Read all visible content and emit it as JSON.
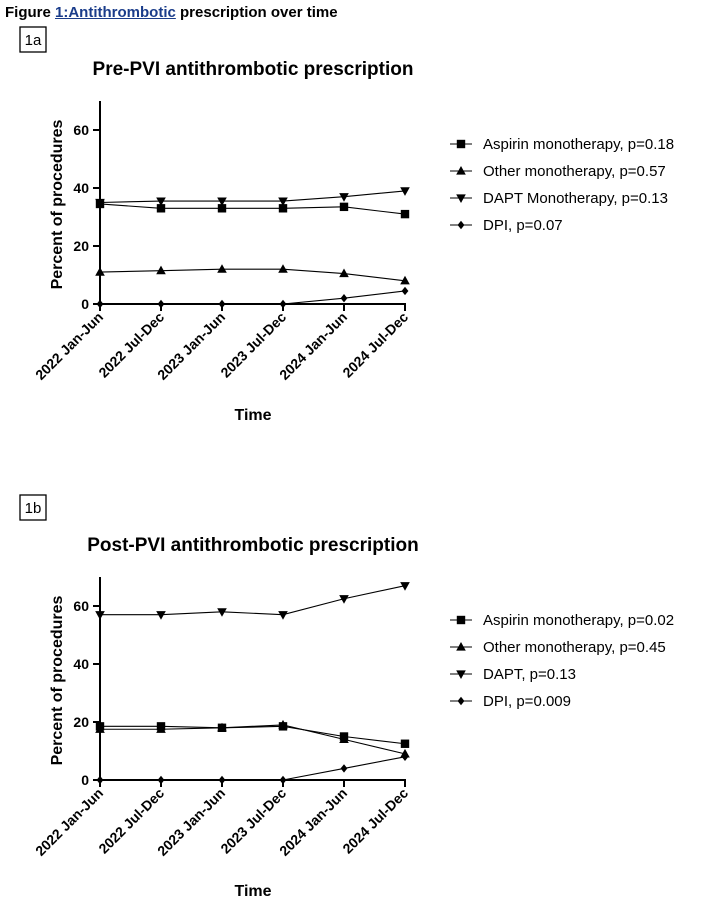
{
  "figure": {
    "caption_prefix": "Figure ",
    "caption_link": "1:Antithrombotic",
    "caption_suffix": " prescription over time"
  },
  "chart_data": [
    {
      "panel": "1a",
      "type": "line",
      "title": "Pre-PVI antithrombotic prescription",
      "xlabel": "Time",
      "ylabel": "Percent of procedures",
      "ylim": [
        0,
        70
      ],
      "yticks": [
        0,
        20,
        40,
        60
      ],
      "categories": [
        "2022 Jan-Jun",
        "2022 Jul-Dec",
        "2023 Jan-Jun",
        "2023 Jul-Dec",
        "2024 Jan-Jun",
        "2024 Jul-Dec"
      ],
      "legend_position": "right",
      "series": [
        {
          "name": "Aspirin monotherapy, p=0.18",
          "marker": "square",
          "values": [
            34.5,
            33,
            33,
            33,
            33.5,
            31
          ]
        },
        {
          "name": "Other monotherapy, p=0.57",
          "marker": "triangle-up",
          "values": [
            11,
            11.5,
            12,
            12,
            10.5,
            8
          ]
        },
        {
          "name": "DAPT Monotherapy, p=0.13",
          "marker": "triangle-down",
          "values": [
            35,
            35.5,
            35.5,
            35.5,
            37,
            39
          ]
        },
        {
          "name": "DPI, p=0.07",
          "marker": "diamond",
          "values": [
            0,
            0,
            0,
            0,
            2,
            4.5
          ]
        }
      ]
    },
    {
      "panel": "1b",
      "type": "line",
      "title": "Post-PVI antithrombotic prescription",
      "xlabel": "Time",
      "ylabel": "Percent of procedures",
      "ylim": [
        0,
        70
      ],
      "yticks": [
        0,
        20,
        40,
        60
      ],
      "categories": [
        "2022 Jan-Jun",
        "2022 Jul-Dec",
        "2023 Jan-Jun",
        "2023 Jul-Dec",
        "2024 Jan-Jun",
        "2024 Jul-Dec"
      ],
      "legend_position": "right",
      "series": [
        {
          "name": "Aspirin monotherapy, p=0.02",
          "marker": "square",
          "values": [
            18.5,
            18.5,
            18,
            18.5,
            15,
            12.5
          ]
        },
        {
          "name": "Other monotherapy, p=0.45",
          "marker": "triangle-up",
          "values": [
            17.5,
            17.5,
            18,
            19,
            14,
            9
          ]
        },
        {
          "name": "DAPT, p=0.13",
          "marker": "triangle-down",
          "values": [
            57,
            57,
            58,
            57,
            62.5,
            67
          ]
        },
        {
          "name": "DPI, p=0.009",
          "marker": "diamond",
          "values": [
            0,
            0,
            0,
            0,
            4,
            8
          ]
        }
      ]
    }
  ]
}
